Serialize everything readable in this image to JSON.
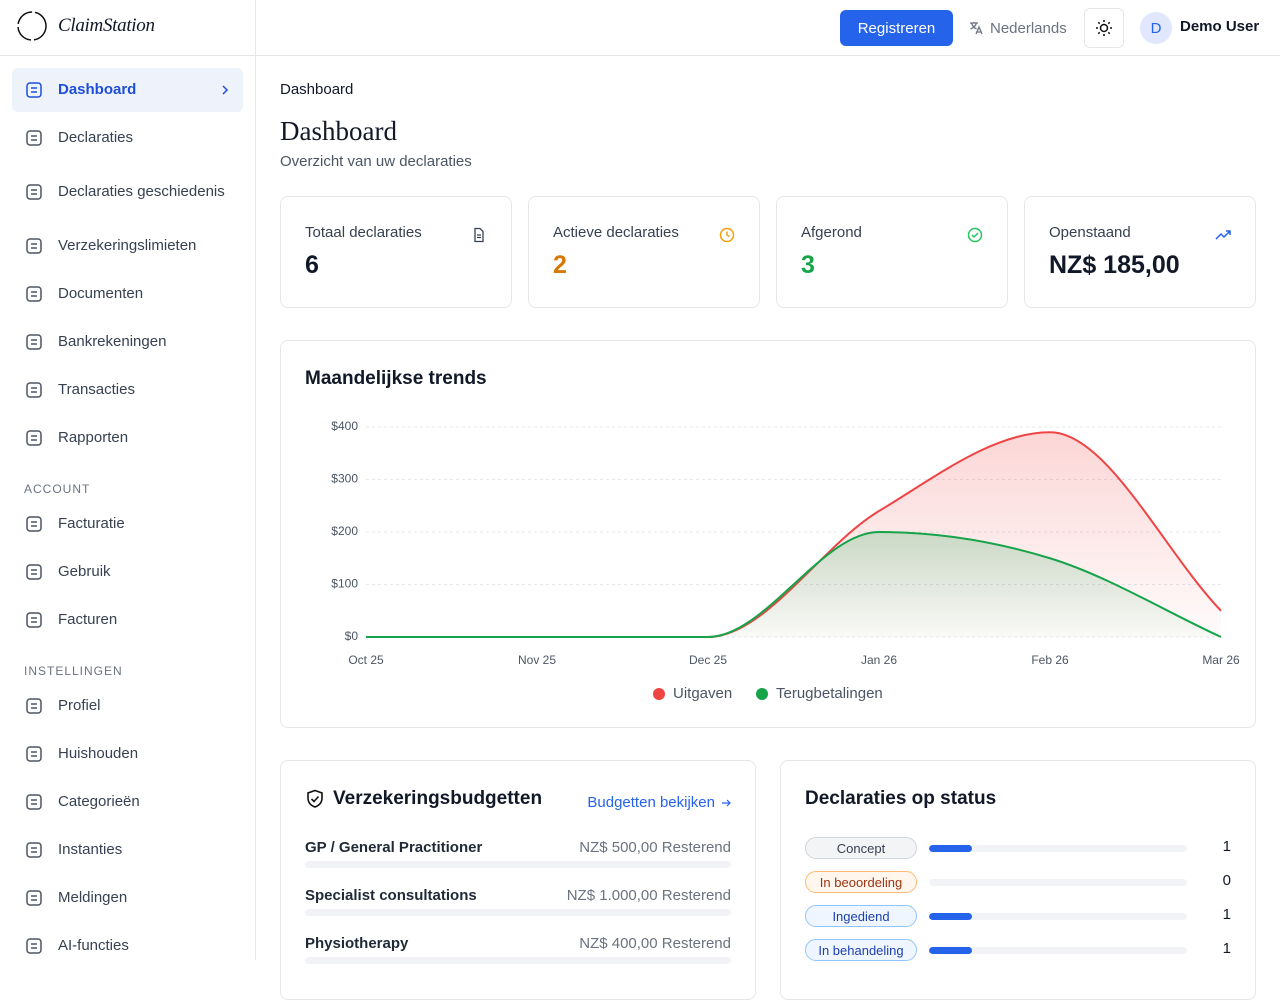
{
  "brand": "ClaimStation",
  "topbar": {
    "register": "Registreren",
    "language": "Nederlands",
    "avatar": "D",
    "user": "Demo User"
  },
  "sidebar": {
    "items": [
      "Dashboard",
      "Declaraties",
      "Declaraties geschiedenis",
      "Verzekeringslimieten",
      "Documenten",
      "Bankrekeningen",
      "Transacties",
      "Rapporten"
    ],
    "sections": [
      {
        "title": "ACCOUNT",
        "items": [
          "Facturatie",
          "Gebruik",
          "Facturen"
        ]
      },
      {
        "title": "INSTELLINGEN",
        "items": [
          "Profiel",
          "Huishouden",
          "Categorieën",
          "Instanties",
          "Meldingen",
          "AI-functies"
        ]
      }
    ]
  },
  "breadcrumb": "Dashboard",
  "header": {
    "title": "Dashboard",
    "subtitle": "Overzicht van uw declaraties"
  },
  "stats": [
    {
      "label": "Totaal declaraties",
      "value": 6
    },
    {
      "label": "Actieve declaraties",
      "value": 2
    },
    {
      "label": "Afgerond",
      "value": 3
    },
    {
      "label": "Openstaand",
      "value": "NZ$ 185,00"
    }
  ],
  "chart_data": {
    "type": "area",
    "title": "Maandelijkse trends",
    "categories": [
      "Oct 25",
      "Nov 25",
      "Dec 25",
      "Jan 26",
      "Feb 26",
      "Mar 26"
    ],
    "series": [
      {
        "name": "Uitgaven",
        "color": "#ef4444",
        "values": [
          0,
          0,
          0,
          240,
          390,
          50
        ]
      },
      {
        "name": "Terugbetalingen",
        "color": "#16a34a",
        "values": [
          0,
          0,
          0,
          200,
          150,
          0
        ]
      }
    ],
    "ylim": [
      0,
      400
    ],
    "yticks": [
      {
        "value": 0,
        "label": "$0"
      },
      {
        "value": 100,
        "label": "$100"
      },
      {
        "value": 200,
        "label": "$200"
      },
      {
        "value": 300,
        "label": "$300"
      },
      {
        "value": 400,
        "label": "$400"
      }
    ],
    "grid": true
  },
  "budgets": {
    "title": "Verzekeringsbudgetten",
    "link": "Budgetten bekijken",
    "items": [
      {
        "name": "GP / General Practitioner",
        "amount": "NZ$ 500,00 Resterend"
      },
      {
        "name": "Specialist consultations",
        "amount": "NZ$ 1.000,00 Resterend"
      },
      {
        "name": "Physiotherapy",
        "amount": "NZ$ 400,00 Resterend"
      }
    ]
  },
  "status": {
    "title": "Declaraties op status",
    "rows": [
      {
        "label": "Concept",
        "count": 1
      },
      {
        "label": "In beoordeling",
        "count": 0
      },
      {
        "label": "Ingediend",
        "count": 1
      },
      {
        "label": "In behandeling",
        "count": 1
      }
    ]
  }
}
